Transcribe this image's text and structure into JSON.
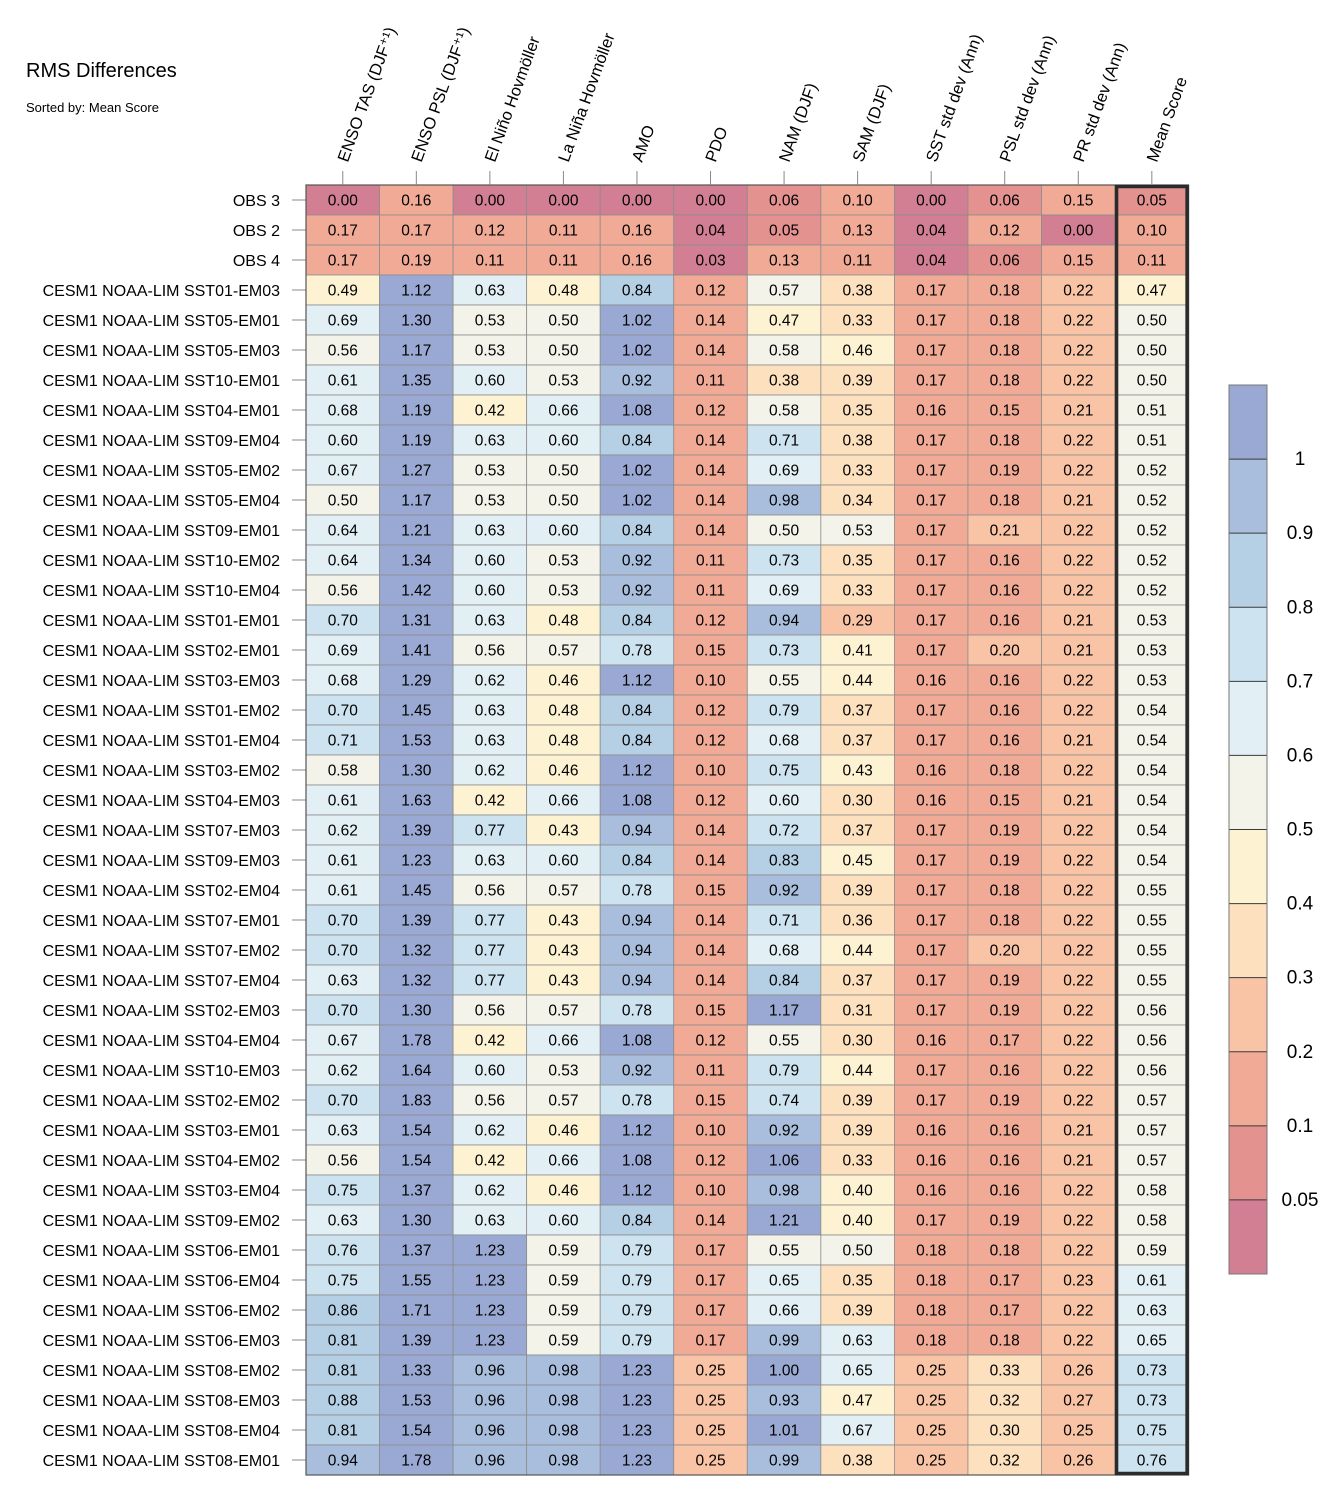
{
  "chart_data": {
    "type": "heatmap",
    "title": "RMS Differences",
    "subtitle": "Sorted by: Mean Score",
    "columns": [
      "ENSO TAS (DJF⁺¹)",
      "ENSO PSL (DJF⁺¹)",
      "El Niño Hovmöller",
      "La Niña Hovmöller",
      "AMO",
      "PDO",
      "NAM (DJF)",
      "SAM (DJF)",
      "SST std dev (Ann)",
      "PSL std dev (Ann)",
      "PR std dev (Ann)",
      "Mean Score"
    ],
    "highlighted_column": "Mean Score",
    "rows": [
      {
        "name": "OBS 3",
        "values": [
          "0.00",
          "0.16",
          "0.00",
          "0.00",
          "0.00",
          "0.00",
          "0.06",
          "0.10",
          "0.00",
          "0.06",
          "0.15",
          "0.05"
        ]
      },
      {
        "name": "OBS 2",
        "values": [
          "0.17",
          "0.17",
          "0.12",
          "0.11",
          "0.16",
          "0.04",
          "0.05",
          "0.13",
          "0.04",
          "0.12",
          "0.00",
          "0.10"
        ]
      },
      {
        "name": "OBS 4",
        "values": [
          "0.17",
          "0.19",
          "0.11",
          "0.11",
          "0.16",
          "0.03",
          "0.13",
          "0.11",
          "0.04",
          "0.06",
          "0.15",
          "0.11"
        ]
      },
      {
        "name": "CESM1 NOAA-LIM SST01-EM03",
        "values": [
          "0.49",
          "1.12",
          "0.63",
          "0.48",
          "0.84",
          "0.12",
          "0.57",
          "0.38",
          "0.17",
          "0.18",
          "0.22",
          "0.47"
        ]
      },
      {
        "name": "CESM1 NOAA-LIM SST05-EM01",
        "values": [
          "0.69",
          "1.30",
          "0.53",
          "0.50",
          "1.02",
          "0.14",
          "0.47",
          "0.33",
          "0.17",
          "0.18",
          "0.22",
          "0.50"
        ]
      },
      {
        "name": "CESM1 NOAA-LIM SST05-EM03",
        "values": [
          "0.56",
          "1.17",
          "0.53",
          "0.50",
          "1.02",
          "0.14",
          "0.58",
          "0.46",
          "0.17",
          "0.18",
          "0.22",
          "0.50"
        ]
      },
      {
        "name": "CESM1 NOAA-LIM SST10-EM01",
        "values": [
          "0.61",
          "1.35",
          "0.60",
          "0.53",
          "0.92",
          "0.11",
          "0.38",
          "0.39",
          "0.17",
          "0.18",
          "0.22",
          "0.50"
        ]
      },
      {
        "name": "CESM1 NOAA-LIM SST04-EM01",
        "values": [
          "0.68",
          "1.19",
          "0.42",
          "0.66",
          "1.08",
          "0.12",
          "0.58",
          "0.35",
          "0.16",
          "0.15",
          "0.21",
          "0.51"
        ]
      },
      {
        "name": "CESM1 NOAA-LIM SST09-EM04",
        "values": [
          "0.60",
          "1.19",
          "0.63",
          "0.60",
          "0.84",
          "0.14",
          "0.71",
          "0.38",
          "0.17",
          "0.18",
          "0.22",
          "0.51"
        ]
      },
      {
        "name": "CESM1 NOAA-LIM SST05-EM02",
        "values": [
          "0.67",
          "1.27",
          "0.53",
          "0.50",
          "1.02",
          "0.14",
          "0.69",
          "0.33",
          "0.17",
          "0.19",
          "0.22",
          "0.52"
        ]
      },
      {
        "name": "CESM1 NOAA-LIM SST05-EM04",
        "values": [
          "0.50",
          "1.17",
          "0.53",
          "0.50",
          "1.02",
          "0.14",
          "0.98",
          "0.34",
          "0.17",
          "0.18",
          "0.21",
          "0.52"
        ]
      },
      {
        "name": "CESM1 NOAA-LIM SST09-EM01",
        "values": [
          "0.64",
          "1.21",
          "0.63",
          "0.60",
          "0.84",
          "0.14",
          "0.50",
          "0.53",
          "0.17",
          "0.21",
          "0.22",
          "0.52"
        ]
      },
      {
        "name": "CESM1 NOAA-LIM SST10-EM02",
        "values": [
          "0.64",
          "1.34",
          "0.60",
          "0.53",
          "0.92",
          "0.11",
          "0.73",
          "0.35",
          "0.17",
          "0.16",
          "0.22",
          "0.52"
        ]
      },
      {
        "name": "CESM1 NOAA-LIM SST10-EM04",
        "values": [
          "0.56",
          "1.42",
          "0.60",
          "0.53",
          "0.92",
          "0.11",
          "0.69",
          "0.33",
          "0.17",
          "0.16",
          "0.22",
          "0.52"
        ]
      },
      {
        "name": "CESM1 NOAA-LIM SST01-EM01",
        "values": [
          "0.70",
          "1.31",
          "0.63",
          "0.48",
          "0.84",
          "0.12",
          "0.94",
          "0.29",
          "0.17",
          "0.16",
          "0.21",
          "0.53"
        ]
      },
      {
        "name": "CESM1 NOAA-LIM SST02-EM01",
        "values": [
          "0.69",
          "1.41",
          "0.56",
          "0.57",
          "0.78",
          "0.15",
          "0.73",
          "0.41",
          "0.17",
          "0.20",
          "0.21",
          "0.53"
        ]
      },
      {
        "name": "CESM1 NOAA-LIM SST03-EM03",
        "values": [
          "0.68",
          "1.29",
          "0.62",
          "0.46",
          "1.12",
          "0.10",
          "0.55",
          "0.44",
          "0.16",
          "0.16",
          "0.22",
          "0.53"
        ]
      },
      {
        "name": "CESM1 NOAA-LIM SST01-EM02",
        "values": [
          "0.70",
          "1.45",
          "0.63",
          "0.48",
          "0.84",
          "0.12",
          "0.79",
          "0.37",
          "0.17",
          "0.16",
          "0.22",
          "0.54"
        ]
      },
      {
        "name": "CESM1 NOAA-LIM SST01-EM04",
        "values": [
          "0.71",
          "1.53",
          "0.63",
          "0.48",
          "0.84",
          "0.12",
          "0.68",
          "0.37",
          "0.17",
          "0.16",
          "0.21",
          "0.54"
        ]
      },
      {
        "name": "CESM1 NOAA-LIM SST03-EM02",
        "values": [
          "0.58",
          "1.30",
          "0.62",
          "0.46",
          "1.12",
          "0.10",
          "0.75",
          "0.43",
          "0.16",
          "0.18",
          "0.22",
          "0.54"
        ]
      },
      {
        "name": "CESM1 NOAA-LIM SST04-EM03",
        "values": [
          "0.61",
          "1.63",
          "0.42",
          "0.66",
          "1.08",
          "0.12",
          "0.60",
          "0.30",
          "0.16",
          "0.15",
          "0.21",
          "0.54"
        ]
      },
      {
        "name": "CESM1 NOAA-LIM SST07-EM03",
        "values": [
          "0.62",
          "1.39",
          "0.77",
          "0.43",
          "0.94",
          "0.14",
          "0.72",
          "0.37",
          "0.17",
          "0.19",
          "0.22",
          "0.54"
        ]
      },
      {
        "name": "CESM1 NOAA-LIM SST09-EM03",
        "values": [
          "0.61",
          "1.23",
          "0.63",
          "0.60",
          "0.84",
          "0.14",
          "0.83",
          "0.45",
          "0.17",
          "0.19",
          "0.22",
          "0.54"
        ]
      },
      {
        "name": "CESM1 NOAA-LIM SST02-EM04",
        "values": [
          "0.61",
          "1.45",
          "0.56",
          "0.57",
          "0.78",
          "0.15",
          "0.92",
          "0.39",
          "0.17",
          "0.18",
          "0.22",
          "0.55"
        ]
      },
      {
        "name": "CESM1 NOAA-LIM SST07-EM01",
        "values": [
          "0.70",
          "1.39",
          "0.77",
          "0.43",
          "0.94",
          "0.14",
          "0.71",
          "0.36",
          "0.17",
          "0.18",
          "0.22",
          "0.55"
        ]
      },
      {
        "name": "CESM1 NOAA-LIM SST07-EM02",
        "values": [
          "0.70",
          "1.32",
          "0.77",
          "0.43",
          "0.94",
          "0.14",
          "0.68",
          "0.44",
          "0.17",
          "0.20",
          "0.22",
          "0.55"
        ]
      },
      {
        "name": "CESM1 NOAA-LIM SST07-EM04",
        "values": [
          "0.63",
          "1.32",
          "0.77",
          "0.43",
          "0.94",
          "0.14",
          "0.84",
          "0.37",
          "0.17",
          "0.19",
          "0.22",
          "0.55"
        ]
      },
      {
        "name": "CESM1 NOAA-LIM SST02-EM03",
        "values": [
          "0.70",
          "1.30",
          "0.56",
          "0.57",
          "0.78",
          "0.15",
          "1.17",
          "0.31",
          "0.17",
          "0.19",
          "0.22",
          "0.56"
        ]
      },
      {
        "name": "CESM1 NOAA-LIM SST04-EM04",
        "values": [
          "0.67",
          "1.78",
          "0.42",
          "0.66",
          "1.08",
          "0.12",
          "0.55",
          "0.30",
          "0.16",
          "0.17",
          "0.22",
          "0.56"
        ]
      },
      {
        "name": "CESM1 NOAA-LIM SST10-EM03",
        "values": [
          "0.62",
          "1.64",
          "0.60",
          "0.53",
          "0.92",
          "0.11",
          "0.79",
          "0.44",
          "0.17",
          "0.16",
          "0.22",
          "0.56"
        ]
      },
      {
        "name": "CESM1 NOAA-LIM SST02-EM02",
        "values": [
          "0.70",
          "1.83",
          "0.56",
          "0.57",
          "0.78",
          "0.15",
          "0.74",
          "0.39",
          "0.17",
          "0.19",
          "0.22",
          "0.57"
        ]
      },
      {
        "name": "CESM1 NOAA-LIM SST03-EM01",
        "values": [
          "0.63",
          "1.54",
          "0.62",
          "0.46",
          "1.12",
          "0.10",
          "0.92",
          "0.39",
          "0.16",
          "0.16",
          "0.21",
          "0.57"
        ]
      },
      {
        "name": "CESM1 NOAA-LIM SST04-EM02",
        "values": [
          "0.56",
          "1.54",
          "0.42",
          "0.66",
          "1.08",
          "0.12",
          "1.06",
          "0.33",
          "0.16",
          "0.16",
          "0.21",
          "0.57"
        ]
      },
      {
        "name": "CESM1 NOAA-LIM SST03-EM04",
        "values": [
          "0.75",
          "1.37",
          "0.62",
          "0.46",
          "1.12",
          "0.10",
          "0.98",
          "0.40",
          "0.16",
          "0.16",
          "0.22",
          "0.58"
        ]
      },
      {
        "name": "CESM1 NOAA-LIM SST09-EM02",
        "values": [
          "0.63",
          "1.30",
          "0.63",
          "0.60",
          "0.84",
          "0.14",
          "1.21",
          "0.40",
          "0.17",
          "0.19",
          "0.22",
          "0.58"
        ]
      },
      {
        "name": "CESM1 NOAA-LIM SST06-EM01",
        "values": [
          "0.76",
          "1.37",
          "1.23",
          "0.59",
          "0.79",
          "0.17",
          "0.55",
          "0.50",
          "0.18",
          "0.18",
          "0.22",
          "0.59"
        ]
      },
      {
        "name": "CESM1 NOAA-LIM SST06-EM04",
        "values": [
          "0.75",
          "1.55",
          "1.23",
          "0.59",
          "0.79",
          "0.17",
          "0.65",
          "0.35",
          "0.18",
          "0.17",
          "0.23",
          "0.61"
        ]
      },
      {
        "name": "CESM1 NOAA-LIM SST06-EM02",
        "values": [
          "0.86",
          "1.71",
          "1.23",
          "0.59",
          "0.79",
          "0.17",
          "0.66",
          "0.39",
          "0.18",
          "0.17",
          "0.22",
          "0.63"
        ]
      },
      {
        "name": "CESM1 NOAA-LIM SST06-EM03",
        "values": [
          "0.81",
          "1.39",
          "1.23",
          "0.59",
          "0.79",
          "0.17",
          "0.99",
          "0.63",
          "0.18",
          "0.18",
          "0.22",
          "0.65"
        ]
      },
      {
        "name": "CESM1 NOAA-LIM SST08-EM02",
        "values": [
          "0.81",
          "1.33",
          "0.96",
          "0.98",
          "1.23",
          "0.25",
          "1.00",
          "0.65",
          "0.25",
          "0.33",
          "0.26",
          "0.73"
        ]
      },
      {
        "name": "CESM1 NOAA-LIM SST08-EM03",
        "values": [
          "0.88",
          "1.53",
          "0.96",
          "0.98",
          "1.23",
          "0.25",
          "0.93",
          "0.47",
          "0.25",
          "0.32",
          "0.27",
          "0.73"
        ]
      },
      {
        "name": "CESM1 NOAA-LIM SST08-EM04",
        "values": [
          "0.81",
          "1.54",
          "0.96",
          "0.98",
          "1.23",
          "0.25",
          "1.01",
          "0.67",
          "0.25",
          "0.30",
          "0.25",
          "0.75"
        ]
      },
      {
        "name": "CESM1 NOAA-LIM SST08-EM01",
        "values": [
          "0.94",
          "1.78",
          "0.96",
          "0.98",
          "1.23",
          "0.25",
          "0.99",
          "0.38",
          "0.25",
          "0.32",
          "0.26",
          "0.76"
        ]
      }
    ],
    "colorbar": {
      "boundaries": [
        0.05,
        0.1,
        0.2,
        0.3,
        0.4,
        0.5,
        0.6,
        0.7,
        0.8,
        0.9,
        1
      ],
      "tick_labels": [
        "1",
        "0.9",
        "0.8",
        "0.7",
        "0.6",
        "0.5",
        "0.4",
        "0.3",
        "0.2",
        "0.1",
        "0.05"
      ],
      "colors": [
        "#d27f94",
        "#e3928f",
        "#f1aa96",
        "#f9c4a5",
        "#fde0bd",
        "#fdf2d1",
        "#f4f3ea",
        "#e2eff4",
        "#cde3ef",
        "#b5cfe4",
        "#a9bedc",
        "#9aa9d3"
      ]
    }
  }
}
